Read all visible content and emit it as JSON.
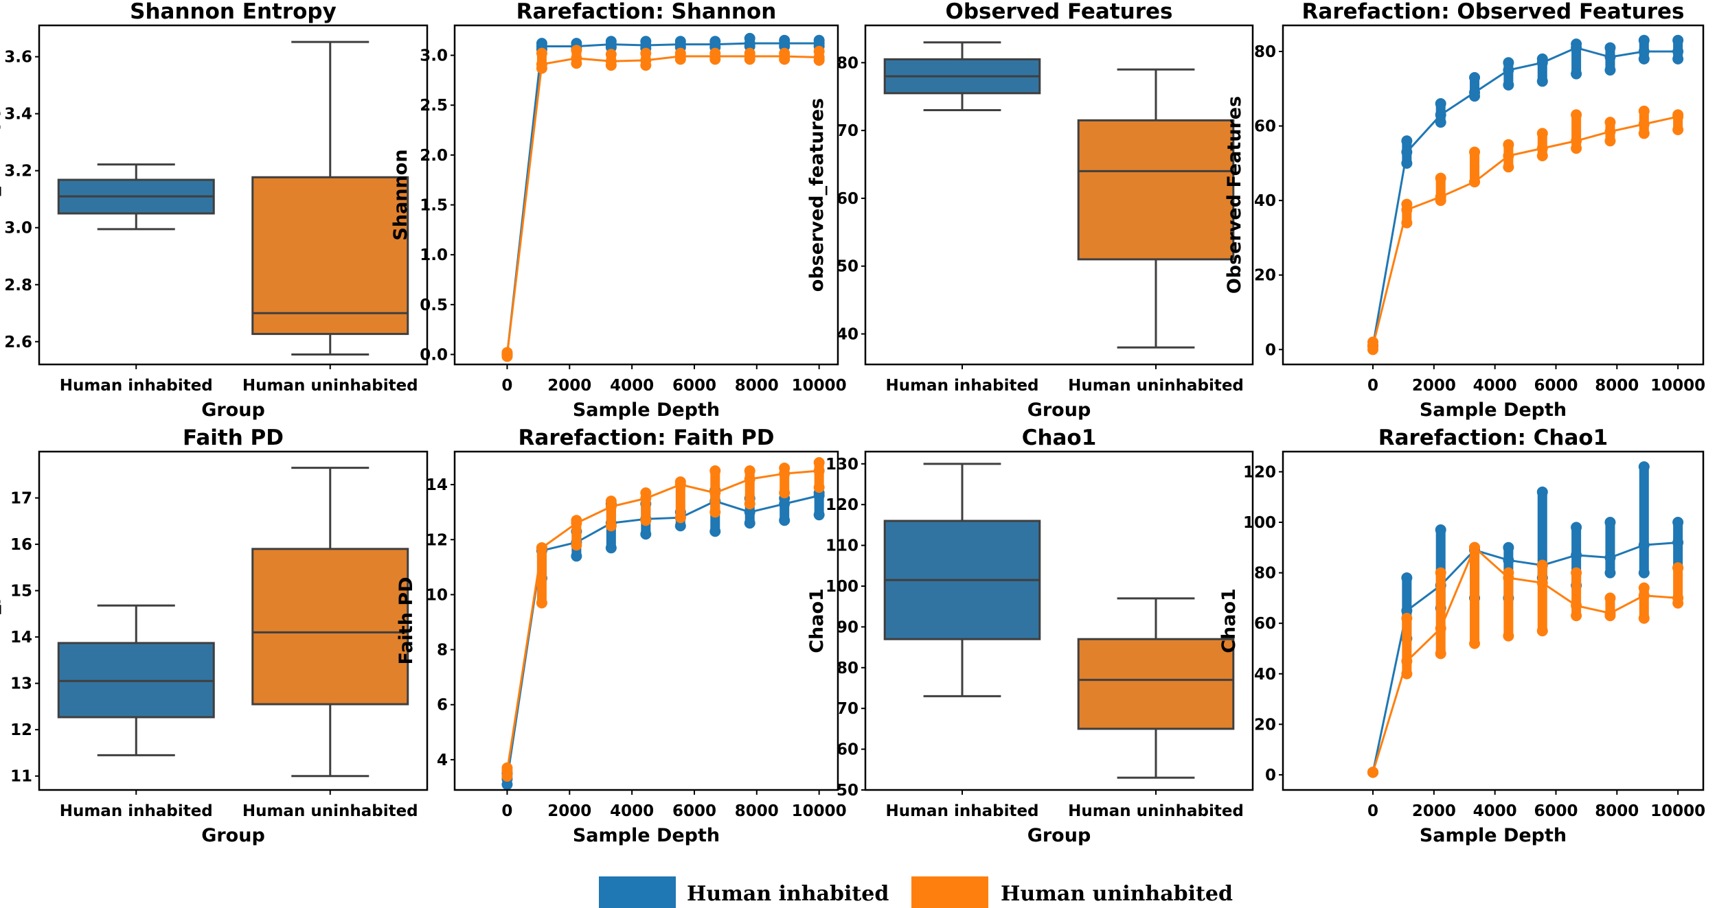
{
  "colors": {
    "box_inhabited": "#3274a1",
    "box_uninhabited": "#e1812c",
    "line_inhabited": "#1f77b4",
    "line_uninhabited": "#ff7f0e",
    "box_edge": "#3f3f3f"
  },
  "legend": {
    "position": "bottom-center",
    "items": [
      {
        "label": "Human inhabited",
        "color": "#1f77b4"
      },
      {
        "label": "Human uninhabited",
        "color": "#ff7f0e"
      }
    ]
  },
  "chart_data": [
    {
      "type": "box",
      "title": "Shannon Entropy",
      "xlabel": "Group",
      "ylabel": "shannon_entropy",
      "ylim": [
        2.52,
        3.71
      ],
      "yticks": [
        "2.6",
        "2.8",
        "3.0",
        "3.2",
        "3.4",
        "3.6"
      ],
      "categories": [
        "Human inhabited",
        "Human uninhabited"
      ],
      "boxes": [
        {
          "min": 2.995,
          "q1": 3.05,
          "median": 3.11,
          "q3": 3.168,
          "max": 3.222
        },
        {
          "min": 2.555,
          "q1": 2.627,
          "median": 2.7,
          "q3": 3.177,
          "max": 3.652
        }
      ]
    },
    {
      "type": "line",
      "title": "Rarefaction: Shannon",
      "xlabel": "Sample Depth",
      "ylabel": "Shannon",
      "xlim": [
        -1683,
        10602
      ],
      "ylim": [
        -0.1,
        3.3
      ],
      "xticks": [
        "0",
        "2000",
        "4000",
        "6000",
        "8000",
        "10000"
      ],
      "yticks": [
        "0.0",
        "0.5",
        "1.0",
        "1.5",
        "2.0",
        "2.5",
        "3.0"
      ],
      "x": [
        0,
        1111,
        2222,
        3333,
        4444,
        5556,
        6667,
        7778,
        8889,
        10000
      ],
      "series": [
        {
          "name": "Human inhabited",
          "mean": [
            0,
            3.09,
            3.09,
            3.11,
            3.1,
            3.11,
            3.11,
            3.12,
            3.12,
            3.12
          ],
          "range": [
            [
              0,
              0
            ],
            [
              3.06,
              3.12
            ],
            [
              3.06,
              3.12
            ],
            [
              3.08,
              3.14
            ],
            [
              3.07,
              3.14
            ],
            [
              3.08,
              3.14
            ],
            [
              3.08,
              3.14
            ],
            [
              3.09,
              3.17
            ],
            [
              3.09,
              3.15
            ],
            [
              3.09,
              3.15
            ]
          ]
        },
        {
          "name": "Human uninhabited",
          "mean": [
            0,
            2.91,
            2.97,
            2.94,
            2.95,
            2.99,
            2.99,
            2.99,
            2.99,
            2.98
          ],
          "range": [
            [
              -0.02,
              0.02
            ],
            [
              2.87,
              3.02
            ],
            [
              2.92,
              3.05
            ],
            [
              2.9,
              3.01
            ],
            [
              2.9,
              3.02
            ],
            [
              2.96,
              3.02
            ],
            [
              2.96,
              3.02
            ],
            [
              2.96,
              3.02
            ],
            [
              2.96,
              3.02
            ],
            [
              2.95,
              3.04
            ]
          ]
        }
      ]
    },
    {
      "type": "box",
      "title": "Observed Features",
      "xlabel": "Group",
      "ylabel": "observed_features",
      "ylim": [
        35.5,
        85.5
      ],
      "yticks": [
        "40",
        "50",
        "60",
        "70",
        "80"
      ],
      "categories": [
        "Human inhabited",
        "Human uninhabited"
      ],
      "boxes": [
        {
          "min": 73,
          "q1": 75.5,
          "median": 78,
          "q3": 80.5,
          "max": 83
        },
        {
          "min": 38,
          "q1": 51,
          "median": 64,
          "q3": 71.5,
          "max": 79
        }
      ]
    },
    {
      "type": "line",
      "title": "Rarefaction: Observed Features",
      "xlabel": "Sample Depth",
      "ylabel": "Observed Features",
      "xlim": [
        -2950,
        10830
      ],
      "ylim": [
        -4,
        87
      ],
      "xticks": [
        "0",
        "2000",
        "4000",
        "6000",
        "8000",
        "10000"
      ],
      "yticks": [
        "0",
        "20",
        "40",
        "60",
        "80"
      ],
      "x": [
        0,
        1111,
        2222,
        3333,
        4444,
        5556,
        6667,
        7778,
        8889,
        10000
      ],
      "series": [
        {
          "name": "Human inhabited",
          "mean": [
            1,
            53,
            63,
            69,
            75,
            77,
            81,
            78.5,
            80,
            80
          ],
          "range": [
            [
              1,
              1
            ],
            [
              50,
              56
            ],
            [
              61,
              66
            ],
            [
              68,
              73
            ],
            [
              71,
              77
            ],
            [
              72,
              78
            ],
            [
              74,
              82
            ],
            [
              75,
              81
            ],
            [
              78,
              83
            ],
            [
              78,
              83
            ]
          ]
        },
        {
          "name": "Human uninhabited",
          "mean": [
            1,
            37.5,
            41,
            45,
            52,
            54,
            56,
            58.5,
            60.5,
            62.5
          ],
          "range": [
            [
              0,
              2
            ],
            [
              34,
              39
            ],
            [
              40,
              46
            ],
            [
              45,
              53
            ],
            [
              49,
              55
            ],
            [
              52,
              58
            ],
            [
              54,
              63
            ],
            [
              56,
              61
            ],
            [
              58,
              64
            ],
            [
              59,
              63
            ]
          ]
        }
      ]
    },
    {
      "type": "box",
      "title": "Faith PD",
      "xlabel": "Group",
      "ylabel": "faith_pd",
      "ylim": [
        10.7,
        18.0
      ],
      "yticks": [
        "11",
        "12",
        "13",
        "14",
        "15",
        "16",
        "17"
      ],
      "categories": [
        "Human inhabited",
        "Human uninhabited"
      ],
      "boxes": [
        {
          "min": 11.45,
          "q1": 12.27,
          "median": 13.05,
          "q3": 13.87,
          "max": 14.68
        },
        {
          "min": 11.0,
          "q1": 12.55,
          "median": 14.1,
          "q3": 15.9,
          "max": 17.65
        }
      ]
    },
    {
      "type": "line",
      "title": "Rarefaction: Faith PD",
      "xlabel": "Sample Depth",
      "ylabel": "Faith PD",
      "xlim": [
        -1683,
        10602
      ],
      "ylim": [
        2.9,
        15.2
      ],
      "xticks": [
        "0",
        "2000",
        "4000",
        "6000",
        "8000",
        "10000"
      ],
      "yticks": [
        "4",
        "6",
        "8",
        "10",
        "12",
        "14"
      ],
      "x": [
        0,
        1111,
        2222,
        3333,
        4444,
        5556,
        6667,
        7778,
        8889,
        10000
      ],
      "series": [
        {
          "name": "Human inhabited",
          "mean": [
            3.3,
            11.6,
            11.9,
            12.6,
            12.75,
            12.8,
            13.4,
            13.0,
            13.3,
            13.6
          ],
          "range": [
            [
              3.1,
              3.5
            ],
            [
              10.6,
              11.7
            ],
            [
              11.4,
              12.3
            ],
            [
              11.7,
              13.3
            ],
            [
              12.2,
              13.3
            ],
            [
              12.5,
              13.0
            ],
            [
              12.3,
              13.8
            ],
            [
              12.6,
              13.5
            ],
            [
              12.7,
              13.5
            ],
            [
              12.9,
              13.7
            ]
          ]
        },
        {
          "name": "Human uninhabited",
          "mean": [
            3.6,
            11.7,
            12.6,
            13.2,
            13.5,
            14.0,
            13.7,
            14.2,
            14.4,
            14.5
          ],
          "range": [
            [
              3.4,
              3.7
            ],
            [
              9.7,
              11.7
            ],
            [
              11.8,
              12.7
            ],
            [
              12.5,
              13.4
            ],
            [
              12.7,
              13.7
            ],
            [
              12.8,
              14.1
            ],
            [
              13.0,
              14.5
            ],
            [
              13.3,
              14.5
            ],
            [
              13.7,
              14.6
            ],
            [
              13.9,
              14.8
            ]
          ]
        }
      ]
    },
    {
      "type": "box",
      "title": "Chao1",
      "xlabel": "Group",
      "ylabel": "Chao1",
      "ylim": [
        50,
        133
      ],
      "yticks": [
        "50",
        "60",
        "70",
        "80",
        "90",
        "100",
        "110",
        "120",
        "130"
      ],
      "categories": [
        "Human inhabited",
        "Human uninhabited"
      ],
      "boxes": [
        {
          "min": 73,
          "q1": 87,
          "median": 101.5,
          "q3": 116,
          "max": 130
        },
        {
          "min": 53,
          "q1": 65,
          "median": 77,
          "q3": 87,
          "max": 97
        }
      ]
    },
    {
      "type": "line",
      "title": "Rarefaction: Chao1",
      "xlabel": "Sample Depth",
      "ylabel": "Chao1",
      "xlim": [
        -2950,
        10830
      ],
      "ylim": [
        -6,
        128
      ],
      "xticks": [
        "0",
        "2000",
        "4000",
        "6000",
        "8000",
        "10000"
      ],
      "yticks": [
        "0",
        "20",
        "40",
        "60",
        "80",
        "100",
        "120"
      ],
      "x": [
        0,
        1111,
        2222,
        3333,
        4444,
        5556,
        6667,
        7778,
        8889,
        10000
      ],
      "series": [
        {
          "name": "Human inhabited",
          "mean": [
            1,
            65,
            75,
            89,
            85,
            83,
            87,
            86,
            91,
            92
          ],
          "range": [
            [
              1,
              1
            ],
            [
              54,
              78
            ],
            [
              66,
              97
            ],
            [
              70,
              90
            ],
            [
              70,
              90
            ],
            [
              78,
              112
            ],
            [
              75,
              98
            ],
            [
              80,
              100
            ],
            [
              80,
              122
            ],
            [
              82,
              100
            ]
          ]
        },
        {
          "name": "Human uninhabited",
          "mean": [
            1,
            45,
            58,
            90,
            78,
            76,
            67,
            64,
            71,
            70
          ],
          "range": [
            [
              1,
              1
            ],
            [
              40,
              62
            ],
            [
              48,
              80
            ],
            [
              52,
              90
            ],
            [
              55,
              80
            ],
            [
              57,
              83
            ],
            [
              63,
              80
            ],
            [
              63,
              70
            ],
            [
              62,
              74
            ],
            [
              68,
              82
            ]
          ]
        }
      ]
    }
  ]
}
